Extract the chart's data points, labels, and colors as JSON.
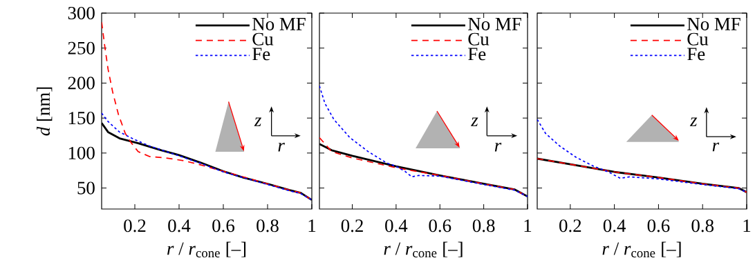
{
  "chart_data": [
    {
      "type": "line",
      "xlabel": "*r* / *r*$_{cone}$ [–]",
      "ylabel": "*d* [nm]",
      "xlim": [
        0.05,
        1
      ],
      "ylim": [
        20,
        300
      ],
      "xticks": [
        0.2,
        0.4,
        0.6,
        0.8,
        1
      ],
      "yticks": [
        50,
        100,
        150,
        200,
        250,
        300
      ],
      "legend": "top right",
      "annotations": [
        "z",
        "r"
      ],
      "series": [
        {
          "name": "No MF",
          "color": "#000000",
          "line_style": "solid",
          "x": [
            0.05,
            0.079,
            0.131,
            0.215,
            0.32,
            0.4,
            0.5,
            0.6,
            0.69,
            0.8,
            0.9,
            0.95,
            1
          ],
          "values": [
            143,
            130,
            121,
            114,
            104,
            97,
            86,
            74,
            65,
            56,
            47,
            43,
            33
          ]
        },
        {
          "name": "Cu",
          "color": "#ff0000",
          "line_style": "dashed",
          "x": [
            0.05,
            0.064,
            0.079,
            0.1,
            0.126,
            0.157,
            0.183,
            0.215,
            0.267,
            0.34,
            0.423,
            0.486,
            0.6,
            0.8,
            0.9,
            0.95,
            1
          ],
          "values": [
            287,
            253,
            220,
            187,
            155,
            128,
            115,
            102,
            95,
            93,
            89,
            84,
            74,
            56,
            47,
            43,
            33
          ]
        },
        {
          "name": "Fe",
          "color": "#0000ff",
          "line_style": "dotted",
          "x": [
            0.05,
            0.079,
            0.131,
            0.194,
            0.267,
            0.4,
            0.5,
            0.6,
            0.8,
            0.9,
            0.95,
            1
          ],
          "values": [
            157,
            145,
            130,
            120,
            110,
            96,
            85,
            73,
            55,
            46,
            42,
            33
          ]
        }
      ]
    },
    {
      "type": "line",
      "xlabel": "*r* / *r*$_{cone}$ [–]",
      "xlim": [
        0.05,
        1
      ],
      "ylim": [
        20,
        300
      ],
      "xticks": [
        0.2,
        0.4,
        0.6,
        0.8,
        1
      ],
      "yticks": [
        50,
        100,
        150,
        200,
        250,
        300
      ],
      "tick_labels": "x",
      "legend": "top right",
      "annotations": [
        "z",
        "r"
      ],
      "series": [
        {
          "name": "No MF",
          "color": "#000000",
          "line_style": "solid",
          "x": [
            0.05,
            0.106,
            0.2,
            0.4,
            0.6,
            0.8,
            0.94,
            1
          ],
          "values": [
            113,
            104,
            96,
            81,
            68,
            56,
            48,
            38
          ]
        },
        {
          "name": "Cu",
          "color": "#ff0000",
          "line_style": "dashed",
          "x": [
            0.05,
            0.07,
            0.106,
            0.2,
            0.4,
            0.6,
            0.8,
            0.94,
            1
          ],
          "values": [
            122,
            115,
            102,
            93,
            79,
            68,
            56,
            48,
            38
          ]
        },
        {
          "name": "Fe",
          "color": "#0000ff",
          "line_style": "dotted",
          "x": [
            0.05,
            0.075,
            0.116,
            0.189,
            0.273,
            0.356,
            0.4,
            0.44,
            0.472,
            0.503,
            0.6,
            0.8,
            0.94,
            1
          ],
          "values": [
            196,
            171,
            148,
            122,
            102,
            86,
            81,
            74,
            66,
            68,
            67,
            55,
            47,
            38
          ]
        }
      ]
    },
    {
      "type": "line",
      "xlabel": "*r* / *r*$_{cone}$ [–]",
      "xlim": [
        0.05,
        1
      ],
      "ylim": [
        20,
        300
      ],
      "xticks": [
        0.2,
        0.4,
        0.6,
        0.8,
        1
      ],
      "yticks": [
        50,
        100,
        150,
        200,
        250,
        300
      ],
      "tick_labels": "x",
      "legend": "top right",
      "annotations": [
        "z",
        "r"
      ],
      "series": [
        {
          "name": "No MF",
          "color": "#000000",
          "line_style": "solid",
          "x": [
            0.05,
            0.2,
            0.4,
            0.6,
            0.8,
            0.963,
            1
          ],
          "values": [
            92,
            84,
            73,
            65,
            56,
            50,
            44
          ]
        },
        {
          "name": "Cu",
          "color": "#ff0000",
          "line_style": "dashed",
          "x": [
            0.05,
            0.2,
            0.4,
            0.6,
            0.8,
            0.963,
            1
          ],
          "values": [
            92,
            84,
            73,
            65,
            56,
            50,
            44
          ]
        },
        {
          "name": "Fe",
          "color": "#0000ff",
          "line_style": "dotted",
          "x": [
            0.05,
            0.088,
            0.152,
            0.226,
            0.3,
            0.373,
            0.426,
            0.468,
            0.6,
            0.8,
            0.963,
            1
          ],
          "values": [
            148,
            128,
            110,
            94,
            82,
            73,
            64,
            66,
            63,
            55,
            49,
            44
          ]
        }
      ]
    }
  ]
}
